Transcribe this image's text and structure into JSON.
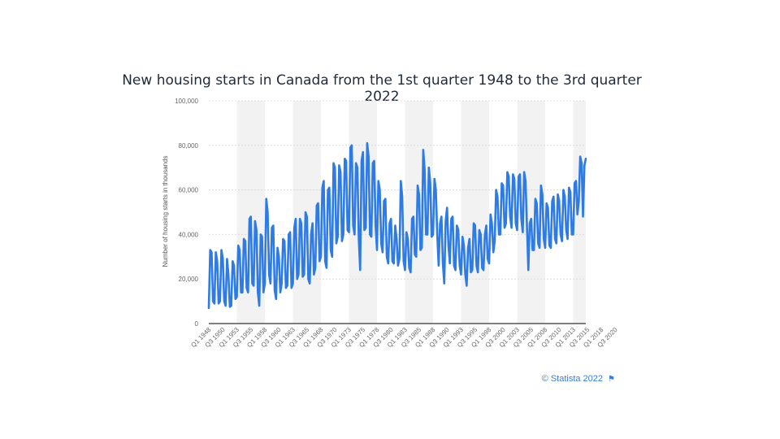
{
  "chart_data": {
    "type": "line",
    "title": "New housing starts in Canada from the 1st quarter 1948 to the 3rd quarter 2022",
    "ylabel": "Number of housing starts in thousands",
    "xlabel": "",
    "ylim": [
      0,
      100000
    ],
    "yticks": [
      "0",
      "20,000",
      "40,000",
      "60,000",
      "80,000",
      "100,000"
    ],
    "yticks_values": [
      0,
      20000,
      40000,
      60000,
      80000,
      100000
    ],
    "x_start_year": 1948,
    "x_tick_labels": [
      "Q1 1948",
      "Q3 1950",
      "Q1 1953",
      "Q3 1955",
      "Q1 1958",
      "Q3 1960",
      "Q1 1963",
      "Q3 1965",
      "Q1 1968",
      "Q3 1970",
      "Q1 1973",
      "Q3 1975",
      "Q1 1978",
      "Q3 1980",
      "Q1 1983",
      "Q3 1985",
      "Q1 1988",
      "Q3 1990",
      "Q1 1993",
      "Q3 1995",
      "Q1 1998",
      "Q3 2000",
      "Q1 2003",
      "Q3 2005",
      "Q1 2008",
      "Q3 2010",
      "Q1 2013",
      "Q3 2015",
      "Q1 2018",
      "Q3 2020"
    ],
    "series": [
      {
        "color": "#2f7be5",
        "values": [
          7000,
          33000,
          32000,
          10000,
          9000,
          32000,
          28000,
          9000,
          10000,
          33000,
          29000,
          10000,
          8000,
          29000,
          22000,
          7500,
          8000,
          28000,
          26000,
          11000,
          12000,
          35000,
          33000,
          14000,
          14000,
          38000,
          37000,
          16000,
          14000,
          47000,
          48000,
          18000,
          17000,
          46000,
          42000,
          14000,
          8000,
          40000,
          39000,
          14000,
          18000,
          56000,
          50000,
          22000,
          18000,
          43000,
          44000,
          15000,
          11000,
          34000,
          30000,
          14000,
          18000,
          38000,
          37000,
          16000,
          17000,
          40000,
          41000,
          16000,
          18000,
          43000,
          47000,
          20000,
          22000,
          47000,
          45000,
          21000,
          22000,
          50000,
          48000,
          20000,
          18000,
          40000,
          45000,
          22000,
          25000,
          53000,
          54000,
          28000,
          30000,
          61000,
          64000,
          28000,
          25000,
          60000,
          61000,
          33000,
          30000,
          72000,
          70000,
          36000,
          39000,
          71000,
          68000,
          37000,
          40000,
          74000,
          73000,
          42000,
          41000,
          79000,
          80000,
          44000,
          40000,
          72000,
          70000,
          38000,
          24000,
          73000,
          77000,
          42000,
          43000,
          81000,
          75000,
          40000,
          39000,
          72000,
          73000,
          44000,
          33000,
          64000,
          60000,
          36000,
          32000,
          55000,
          56000,
          30000,
          27000,
          45000,
          47000,
          28000,
          27000,
          44000,
          38000,
          26000,
          29000,
          64000,
          57000,
          28000,
          24000,
          41000,
          38000,
          25000,
          23000,
          47000,
          48000,
          31000,
          30000,
          62000,
          58000,
          33000,
          34000,
          78000,
          69000,
          40000,
          40000,
          70000,
          63000,
          39000,
          40000,
          65000,
          60000,
          40000,
          26000,
          45000,
          48000,
          27000,
          18000,
          46000,
          52000,
          35000,
          27000,
          47000,
          48000,
          26000,
          24000,
          44000,
          42000,
          26000,
          22000,
          39000,
          35000,
          22000,
          17000,
          34000,
          38000,
          23000,
          24000,
          45000,
          44000,
          26000,
          23000,
          42000,
          40000,
          25000,
          24000,
          40000,
          44000,
          29000,
          27000,
          49000,
          45000,
          32000,
          37000,
          60000,
          57000,
          40000,
          40000,
          63000,
          62000,
          43000,
          45000,
          68000,
          66000,
          48000,
          43000,
          67000,
          65000,
          45000,
          42000,
          66000,
          67000,
          47000,
          41000,
          68000,
          64000,
          44000,
          24000,
          45000,
          47000,
          33000,
          33000,
          56000,
          54000,
          36000,
          34000,
          62000,
          58000,
          38000,
          34000,
          54000,
          52000,
          35000,
          34000,
          55000,
          57000,
          38000,
          36000,
          58000,
          55000,
          40000,
          37000,
          60000,
          57000,
          42000,
          38000,
          61000,
          59000,
          40000,
          40000,
          63000,
          64000,
          49000,
          55000,
          75000,
          72000,
          48000,
          71000,
          74000
        ]
      }
    ],
    "grid": true,
    "legend": "none"
  },
  "footer": {
    "credit": "© Statista 2022",
    "flag_icon": "flag-icon"
  }
}
